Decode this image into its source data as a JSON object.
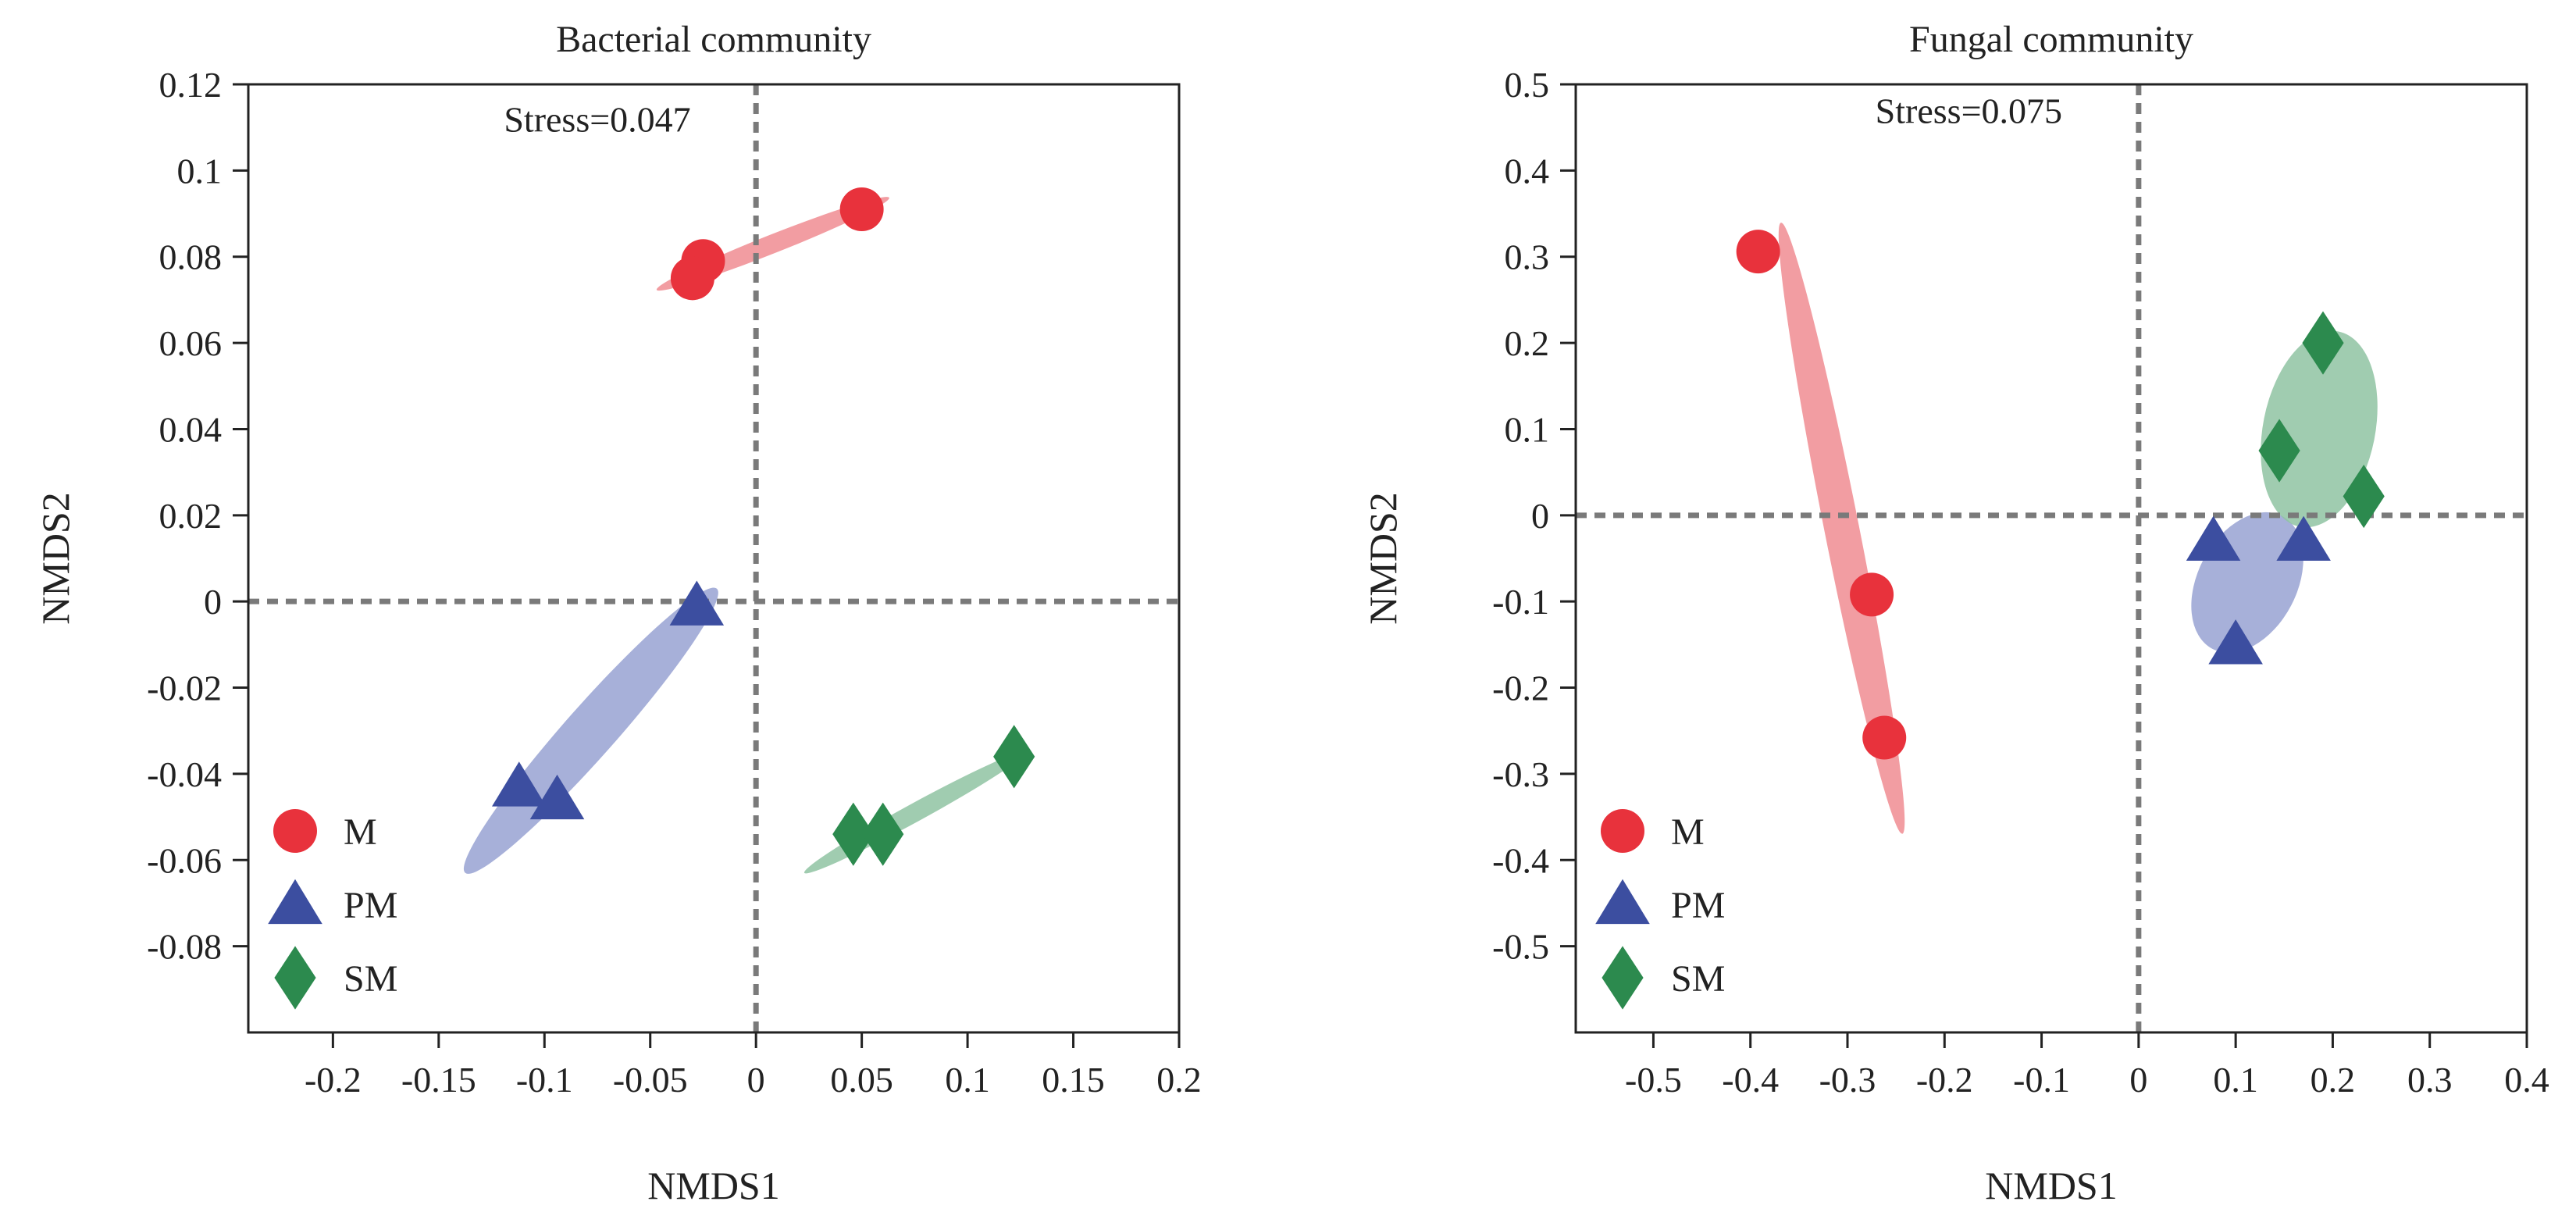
{
  "chart_data": [
    {
      "type": "scatter",
      "title": "Bacterial community",
      "xlabel": "NMDS1",
      "ylabel": "NMDS2",
      "xlim": [
        -0.24,
        0.2
      ],
      "ylim": [
        -0.1,
        0.12
      ],
      "xticks": [
        -0.2,
        -0.15,
        -0.1,
        -0.05,
        0,
        0.05,
        0.1,
        0.15,
        0.2
      ],
      "xtick_labels": [
        "-0.2",
        "-0.15",
        "-0.1",
        "-0.05",
        "0",
        "0.05",
        "0.1",
        "0.15",
        "0.2"
      ],
      "yticks": [
        -0.08,
        -0.06,
        -0.04,
        -0.02,
        0,
        0.02,
        0.04,
        0.06,
        0.08,
        0.1,
        0.12
      ],
      "ytick_labels": [
        "-0.08",
        "-0.06",
        "-0.04",
        "-0.02",
        "0",
        "0.02",
        "0.04",
        "0.06",
        "0.08",
        "0.1",
        "0.12"
      ],
      "annotation": "Stress=0.047",
      "annotation_pos": [
        -0.075,
        0.109
      ],
      "reference_lines": {
        "x": 0,
        "y": 0
      },
      "legend_position": "bottom-left",
      "series": [
        {
          "name": "M",
          "marker": "circle",
          "color": "#e8323c",
          "ellipse_color": "#f08c92",
          "points": [
            [
              -0.025,
              0.079
            ],
            [
              -0.03,
              0.075
            ],
            [
              0.05,
              0.091
            ]
          ],
          "ellipse": {
            "cx": 0.008,
            "cy": 0.083,
            "rx": 0.056,
            "ry": 0.0022,
            "angle": 11
          }
        },
        {
          "name": "PM",
          "marker": "triangle",
          "color": "#3c4ea0",
          "ellipse_color": "#98a2d2",
          "points": [
            [
              -0.028,
              -0.001
            ],
            [
              -0.112,
              -0.043
            ],
            [
              -0.094,
              -0.046
            ]
          ],
          "ellipse": {
            "cx": -0.078,
            "cy": -0.03,
            "rx": 0.068,
            "ry": 0.0065,
            "angle": 29
          }
        },
        {
          "name": "SM",
          "marker": "diamond",
          "color": "#2c8a4e",
          "ellipse_color": "#8fc3a2",
          "points": [
            [
              0.046,
              -0.054
            ],
            [
              0.06,
              -0.054
            ],
            [
              0.122,
              -0.036
            ]
          ],
          "ellipse": {
            "cx": 0.075,
            "cy": -0.049,
            "rx": 0.054,
            "ry": 0.0022,
            "angle": 15
          }
        }
      ]
    },
    {
      "type": "scatter",
      "title": "Fungal community",
      "xlabel": "NMDS1",
      "ylabel": "NMDS2",
      "xlim": [
        -0.58,
        0.4
      ],
      "ylim": [
        -0.6,
        0.5
      ],
      "xticks": [
        -0.5,
        -0.4,
        -0.3,
        -0.2,
        -0.1,
        0,
        0.1,
        0.2,
        0.3,
        0.4
      ],
      "xtick_labels": [
        "-0.5",
        "-0.4",
        "-0.3",
        "-0.2",
        "-0.1",
        "0",
        "0.1",
        "0.2",
        "0.3",
        "0.4"
      ],
      "yticks": [
        -0.5,
        -0.4,
        -0.3,
        -0.2,
        -0.1,
        0,
        0.1,
        0.2,
        0.3,
        0.4,
        0.5
      ],
      "ytick_labels": [
        "-0.5",
        "-0.4",
        "-0.3",
        "-0.2",
        "-0.1",
        "0",
        "0.1",
        "0.2",
        "0.3",
        "0.4",
        "0.5"
      ],
      "annotation": "Stress=0.075",
      "annotation_pos": [
        -0.175,
        0.455
      ],
      "reference_lines": {
        "x": 0,
        "y": 0
      },
      "legend_position": "bottom-left",
      "series": [
        {
          "name": "M",
          "marker": "circle",
          "color": "#e8323c",
          "ellipse_color": "#f08c92",
          "points": [
            [
              -0.392,
              0.306
            ],
            [
              -0.275,
              -0.092
            ],
            [
              -0.262,
              -0.258
            ]
          ],
          "ellipse": {
            "cx": -0.306,
            "cy": -0.015,
            "rx": 0.36,
            "ry": 0.018,
            "angle": -80
          }
        },
        {
          "name": "PM",
          "marker": "triangle",
          "color": "#3c4ea0",
          "ellipse_color": "#98a2d2",
          "points": [
            [
              0.077,
              -0.03
            ],
            [
              0.1,
              -0.15
            ],
            [
              0.17,
              -0.03
            ]
          ],
          "ellipse": {
            "cx": 0.112,
            "cy": -0.078,
            "rx": 0.085,
            "ry": 0.052,
            "angle": 65
          }
        },
        {
          "name": "SM",
          "marker": "diamond",
          "color": "#2c8a4e",
          "ellipse_color": "#8fc3a2",
          "points": [
            [
              0.19,
              0.2
            ],
            [
              0.145,
              0.075
            ],
            [
              0.232,
              0.022
            ]
          ],
          "ellipse": {
            "cx": 0.186,
            "cy": 0.1,
            "rx": 0.115,
            "ry": 0.058,
            "angle": 80
          }
        }
      ]
    }
  ]
}
